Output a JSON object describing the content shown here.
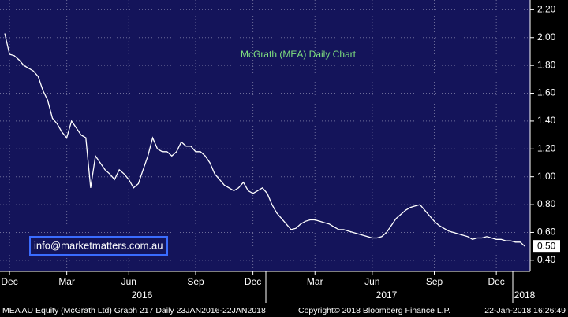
{
  "chart_data": {
    "type": "line",
    "title": "McGrath (MEA) Daily Chart",
    "categories": [
      null,
      "Dec",
      null,
      null,
      null,
      null,
      null,
      null,
      null,
      null,
      null,
      null,
      null,
      "Mar",
      null,
      null,
      null,
      null,
      null,
      null,
      null,
      null,
      null,
      null,
      null,
      null,
      "Jun",
      null,
      null,
      null,
      null,
      null,
      null,
      null,
      null,
      null,
      null,
      null,
      null,
      null,
      "Sep",
      null,
      null,
      null,
      null,
      null,
      null,
      null,
      null,
      null,
      null,
      null,
      "Dec",
      null,
      null,
      null,
      null,
      null,
      null,
      null,
      null,
      null,
      null,
      null,
      null,
      "Mar",
      null,
      null,
      null,
      null,
      null,
      null,
      null,
      null,
      null,
      null,
      null,
      "Jun",
      null,
      null,
      null,
      null,
      null,
      null,
      null,
      null,
      null,
      null,
      null,
      null,
      "Sep",
      null,
      null,
      null,
      null,
      null,
      null,
      null,
      null,
      null,
      null,
      null,
      null,
      "Dec",
      null,
      null,
      null,
      null,
      null,
      null
    ],
    "x_groups": [
      "2016",
      "2017",
      "2018"
    ],
    "series": [
      {
        "name": "MEA AU Equity",
        "color": "#ffffff",
        "values": [
          2.03,
          1.88,
          1.87,
          1.84,
          1.8,
          1.78,
          1.76,
          1.72,
          1.62,
          1.55,
          1.42,
          1.38,
          1.32,
          1.28,
          1.4,
          1.35,
          1.3,
          1.28,
          0.92,
          1.15,
          1.1,
          1.05,
          1.02,
          0.98,
          1.05,
          1.02,
          0.98,
          0.92,
          0.95,
          1.05,
          1.15,
          1.28,
          1.2,
          1.18,
          1.18,
          1.15,
          1.18,
          1.25,
          1.22,
          1.22,
          1.18,
          1.18,
          1.15,
          1.1,
          1.02,
          0.98,
          0.94,
          0.92,
          0.9,
          0.92,
          0.96,
          0.9,
          0.88,
          0.9,
          0.92,
          0.88,
          0.8,
          0.74,
          0.7,
          0.66,
          0.62,
          0.63,
          0.66,
          0.68,
          0.69,
          0.69,
          0.68,
          0.67,
          0.66,
          0.64,
          0.62,
          0.62,
          0.61,
          0.6,
          0.59,
          0.58,
          0.57,
          0.56,
          0.56,
          0.57,
          0.6,
          0.65,
          0.7,
          0.73,
          0.76,
          0.78,
          0.79,
          0.8,
          0.76,
          0.72,
          0.68,
          0.65,
          0.63,
          0.61,
          0.6,
          0.59,
          0.58,
          0.57,
          0.55,
          0.56,
          0.56,
          0.57,
          0.56,
          0.55,
          0.55,
          0.54,
          0.54,
          0.53,
          0.53,
          0.5
        ]
      }
    ],
    "last_label": {
      "value": 0.5,
      "label": "0.50"
    },
    "ylim": [
      0.32,
      2.27
    ],
    "yticks": [
      {
        "value": 0.4,
        "label": "0.40"
      },
      {
        "value": 0.6,
        "label": "0.60"
      },
      {
        "value": 0.8,
        "label": "0.80"
      },
      {
        "value": 1.0,
        "label": "1.00"
      },
      {
        "value": 1.2,
        "label": "1.20"
      },
      {
        "value": 1.4,
        "label": "1.40"
      },
      {
        "value": 1.6,
        "label": "1.60"
      },
      {
        "value": 1.8,
        "label": "1.80"
      },
      {
        "value": 2.0,
        "label": "2.00"
      },
      {
        "value": 2.2,
        "label": "2.20"
      }
    ],
    "grid": true,
    "annotation": "info@marketmatters.com.au",
    "footer": {
      "left": "MEA AU Equity (McGrath Ltd) Graph 217  Daily 23JAN2016-22JAN2018",
      "center": "Copyright© 2018 Bloomberg Finance L.P.",
      "right": "22-Jan-2018 16:26:49"
    }
  }
}
